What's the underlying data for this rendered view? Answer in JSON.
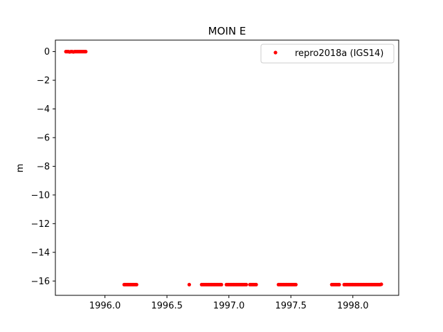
{
  "chart_data": {
    "type": "scatter",
    "title": "MOIN E",
    "xlabel": "",
    "ylabel": "m",
    "xlim": [
      1995.6,
      1998.37
    ],
    "ylim": [
      -17.0,
      0.8
    ],
    "xticks": [
      1996.0,
      1996.5,
      1997.0,
      1997.5,
      1998.0
    ],
    "xtick_labels": [
      "1996.0",
      "1996.5",
      "1997.0",
      "1997.5",
      "1998.0"
    ],
    "yticks": [
      0,
      -2,
      -4,
      -6,
      -8,
      -10,
      -12,
      -14,
      -16
    ],
    "ytick_labels": [
      "0",
      "−2",
      "−4",
      "−6",
      "−8",
      "−10",
      "−12",
      "−14",
      "−16"
    ],
    "grid": false,
    "legend_position": "top-right",
    "series": [
      {
        "name": "repro2018a (IGS14)",
        "color": "#ff0000",
        "marker": "point",
        "points": [
          [
            1995.685,
            0.0
          ],
          [
            1995.695,
            0.0
          ],
          [
            1995.705,
            0.0
          ],
          [
            1995.715,
            -0.02
          ],
          [
            1995.725,
            0.0
          ],
          [
            1995.735,
            0.0
          ],
          [
            1995.745,
            -0.02
          ],
          [
            1995.755,
            0.0
          ],
          [
            1995.765,
            0.0
          ],
          [
            1995.775,
            0.0
          ],
          [
            1995.785,
            0.0
          ],
          [
            1995.795,
            0.0
          ],
          [
            1995.805,
            0.0
          ],
          [
            1995.815,
            0.0
          ],
          [
            1995.825,
            0.0
          ],
          [
            1995.835,
            0.0
          ],
          [
            1995.845,
            0.0
          ],
          [
            1996.155,
            -16.25
          ],
          [
            1996.165,
            -16.25
          ],
          [
            1996.175,
            -16.25
          ],
          [
            1996.185,
            -16.25
          ],
          [
            1996.195,
            -16.25
          ],
          [
            1996.205,
            -16.25
          ],
          [
            1996.215,
            -16.25
          ],
          [
            1996.225,
            -16.25
          ],
          [
            1996.235,
            -16.25
          ],
          [
            1996.245,
            -16.25
          ],
          [
            1996.255,
            -16.25
          ],
          [
            1996.68,
            -16.25
          ],
          [
            1996.78,
            -16.25
          ],
          [
            1996.79,
            -16.25
          ],
          [
            1996.8,
            -16.25
          ],
          [
            1996.81,
            -16.25
          ],
          [
            1996.82,
            -16.25
          ],
          [
            1996.83,
            -16.25
          ],
          [
            1996.84,
            -16.25
          ],
          [
            1996.85,
            -16.25
          ],
          [
            1996.86,
            -16.25
          ],
          [
            1996.87,
            -16.25
          ],
          [
            1996.88,
            -16.25
          ],
          [
            1996.89,
            -16.25
          ],
          [
            1996.9,
            -16.25
          ],
          [
            1996.91,
            -16.25
          ],
          [
            1996.92,
            -16.25
          ],
          [
            1996.93,
            -16.25
          ],
          [
            1996.94,
            -16.25
          ],
          [
            1996.98,
            -16.25
          ],
          [
            1996.99,
            -16.25
          ],
          [
            1997.0,
            -16.25
          ],
          [
            1997.01,
            -16.25
          ],
          [
            1997.02,
            -16.25
          ],
          [
            1997.03,
            -16.25
          ],
          [
            1997.04,
            -16.25
          ],
          [
            1997.05,
            -16.25
          ],
          [
            1997.06,
            -16.25
          ],
          [
            1997.07,
            -16.25
          ],
          [
            1997.08,
            -16.25
          ],
          [
            1997.09,
            -16.25
          ],
          [
            1997.1,
            -16.25
          ],
          [
            1997.11,
            -16.25
          ],
          [
            1997.12,
            -16.25
          ],
          [
            1997.13,
            -16.25
          ],
          [
            1997.14,
            -16.25
          ],
          [
            1997.17,
            -16.25
          ],
          [
            1997.18,
            -16.25
          ],
          [
            1997.19,
            -16.25
          ],
          [
            1997.2,
            -16.25
          ],
          [
            1997.21,
            -16.25
          ],
          [
            1997.22,
            -16.25
          ],
          [
            1997.4,
            -16.25
          ],
          [
            1997.41,
            -16.25
          ],
          [
            1997.42,
            -16.25
          ],
          [
            1997.43,
            -16.25
          ],
          [
            1997.44,
            -16.25
          ],
          [
            1997.45,
            -16.25
          ],
          [
            1997.46,
            -16.25
          ],
          [
            1997.47,
            -16.25
          ],
          [
            1997.48,
            -16.25
          ],
          [
            1997.49,
            -16.25
          ],
          [
            1997.5,
            -16.25
          ],
          [
            1997.51,
            -16.25
          ],
          [
            1997.52,
            -16.25
          ],
          [
            1997.53,
            -16.25
          ],
          [
            1997.54,
            -16.25
          ],
          [
            1997.83,
            -16.25
          ],
          [
            1997.84,
            -16.25
          ],
          [
            1997.85,
            -16.25
          ],
          [
            1997.86,
            -16.25
          ],
          [
            1997.87,
            -16.25
          ],
          [
            1997.88,
            -16.25
          ],
          [
            1997.89,
            -16.25
          ],
          [
            1997.93,
            -16.25
          ],
          [
            1997.94,
            -16.25
          ],
          [
            1997.95,
            -16.25
          ],
          [
            1997.96,
            -16.25
          ],
          [
            1997.97,
            -16.25
          ],
          [
            1997.98,
            -16.25
          ],
          [
            1997.99,
            -16.25
          ],
          [
            1998.0,
            -16.25
          ],
          [
            1998.01,
            -16.25
          ],
          [
            1998.02,
            -16.25
          ],
          [
            1998.03,
            -16.25
          ],
          [
            1998.04,
            -16.25
          ],
          [
            1998.05,
            -16.25
          ],
          [
            1998.06,
            -16.25
          ],
          [
            1998.07,
            -16.25
          ],
          [
            1998.08,
            -16.25
          ],
          [
            1998.09,
            -16.25
          ],
          [
            1998.1,
            -16.25
          ],
          [
            1998.11,
            -16.25
          ],
          [
            1998.12,
            -16.25
          ],
          [
            1998.13,
            -16.25
          ],
          [
            1998.14,
            -16.25
          ],
          [
            1998.15,
            -16.25
          ],
          [
            1998.16,
            -16.25
          ],
          [
            1998.17,
            -16.25
          ],
          [
            1998.18,
            -16.25
          ],
          [
            1998.19,
            -16.25
          ],
          [
            1998.2,
            -16.25
          ],
          [
            1998.21,
            -16.25
          ],
          [
            1998.22,
            -16.25
          ],
          [
            1998.23,
            -16.23
          ]
        ]
      }
    ]
  }
}
